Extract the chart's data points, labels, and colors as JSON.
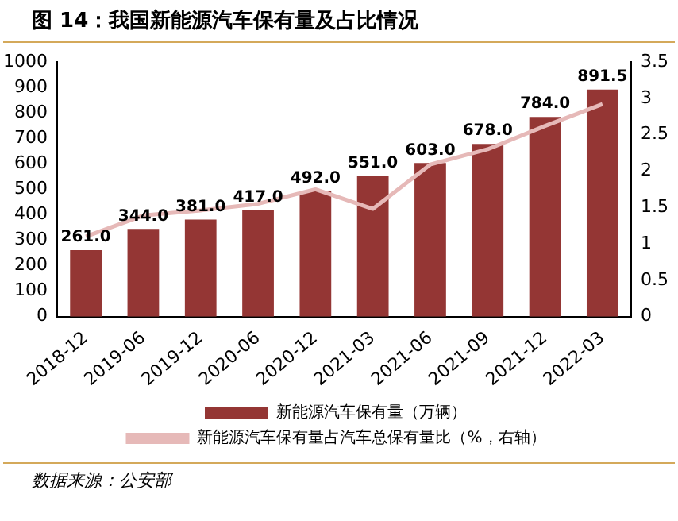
{
  "chart_data": {
    "type": "bar",
    "title": "图 14：我国新能源汽车保有量及占比情况",
    "categories": [
      "2018-12",
      "2019-06",
      "2019-12",
      "2020-06",
      "2020-12",
      "2021-03",
      "2021-06",
      "2021-09",
      "2021-12",
      "2022-03"
    ],
    "series": [
      {
        "name": "新能源汽车保有量（万辆）",
        "color": "#943634",
        "values": [
          261,
          344,
          381,
          417,
          492,
          551,
          603,
          678,
          784,
          891.5
        ],
        "value_labels": [
          "261.0",
          "344.0",
          "381.0",
          "417.0",
          "492.0",
          "551.0",
          "603.0",
          "678.0",
          "784.0",
          "891.5"
        ]
      },
      {
        "name": "新能源汽车保有量占汽车总保有量比（%，右轴）",
        "type": "line",
        "axis": "y2",
        "color": "#e6b9b8",
        "values": [
          1.1,
          1.39,
          1.46,
          1.55,
          1.75,
          1.48,
          2.09,
          2.3,
          2.62,
          2.92
        ]
      }
    ],
    "ylim": [
      0,
      1000
    ],
    "yticks": [
      0,
      100,
      200,
      300,
      400,
      500,
      600,
      700,
      800,
      900,
      1000
    ],
    "y2lim": [
      0,
      3.5
    ],
    "y2ticks": [
      0,
      0.5,
      1,
      1.5,
      2,
      2.5,
      3,
      3.5
    ],
    "legend": "bottom",
    "grid": false,
    "marker": "none",
    "annotations": [
      "数据来源：公安部"
    ]
  }
}
